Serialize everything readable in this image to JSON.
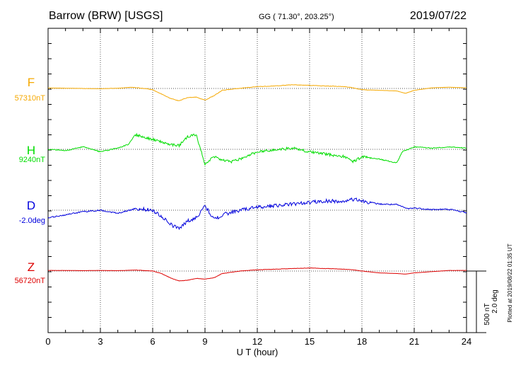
{
  "header": {
    "station": "Barrow (BRW)  [USGS]",
    "coords": "GG ( 71.30°, 203.25°)",
    "date": "2019/07/22"
  },
  "scale_bar": {
    "line1": "500 nT",
    "line2": "2.0 deg"
  },
  "plotted_note": "Plotted at 2019/08/22 01:35 UT",
  "chart_data": {
    "type": "line",
    "title": "Barrow (BRW)  [USGS]",
    "xlabel": "U T (hour)",
    "ylabel": "",
    "xlim": [
      0,
      24
    ],
    "x_ticks": [
      "0",
      "3",
      "6",
      "9",
      "12",
      "15",
      "18",
      "21",
      "24"
    ],
    "grid": true,
    "colors": {
      "F": "#f5a800",
      "H": "#00dd00",
      "D": "#0000dd",
      "Z": "#dd0000"
    },
    "series": [
      {
        "name": "F",
        "baseline_label": "57310nT",
        "color": "#f5a800",
        "unit": "nT",
        "x": [
          0,
          1,
          2,
          3,
          4,
          4.8,
          5.4,
          6,
          6.5,
          7,
          7.5,
          8,
          8.5,
          9,
          9.5,
          10,
          11,
          12,
          13,
          14,
          15,
          16,
          17,
          17.5,
          18,
          19,
          20,
          20.5,
          21,
          22,
          23,
          24
        ],
        "values": [
          4,
          2,
          0,
          -2,
          2,
          10,
          2,
          -10,
          -45,
          -80,
          -100,
          -75,
          -70,
          -95,
          -60,
          -15,
          2,
          15,
          20,
          30,
          25,
          20,
          15,
          5,
          -10,
          -15,
          -20,
          -40,
          -15,
          5,
          10,
          5
        ]
      },
      {
        "name": "H",
        "baseline_label": "9240nT",
        "color": "#00dd00",
        "unit": "nT",
        "x": [
          0,
          1,
          2,
          3,
          4,
          4.6,
          5,
          5.5,
          6,
          6.5,
          7,
          7.5,
          8,
          8.5,
          9,
          9.5,
          10,
          10.5,
          11,
          12,
          13,
          14,
          15,
          16,
          17,
          17.5,
          18,
          19,
          20,
          20.3,
          21,
          22,
          23,
          24
        ],
        "values": [
          0,
          -10,
          20,
          -20,
          10,
          40,
          120,
          100,
          80,
          60,
          40,
          30,
          100,
          120,
          -120,
          -60,
          -90,
          -100,
          -80,
          -20,
          -5,
          10,
          -20,
          -40,
          -60,
          -100,
          -60,
          -80,
          -110,
          -20,
          20,
          10,
          20,
          10
        ]
      },
      {
        "name": "D",
        "baseline_label": "-2.0deg",
        "color": "#0000dd",
        "unit": "deg",
        "x": [
          0,
          1,
          2,
          3,
          4,
          5,
          6,
          6.5,
          7,
          7.5,
          8,
          8.5,
          9,
          9.5,
          10,
          11,
          12,
          13,
          14,
          15,
          16,
          17,
          17.5,
          18,
          19,
          20,
          20.6,
          21,
          22,
          23,
          24
        ],
        "values": [
          -0.25,
          -0.15,
          -0.05,
          0,
          -0.1,
          0.05,
          0,
          -0.2,
          -0.45,
          -0.6,
          -0.35,
          -0.25,
          0.15,
          -0.3,
          -0.15,
          0,
          0.1,
          0.15,
          0.2,
          0.25,
          0.3,
          0.28,
          0.35,
          0.3,
          0.2,
          0.18,
          0.05,
          0.07,
          0.02,
          0.03,
          -0.08
        ]
      },
      {
        "name": "Z",
        "baseline_label": "56720nT",
        "color": "#dd0000",
        "unit": "nT",
        "x": [
          0,
          1,
          2,
          3,
          4,
          5,
          6,
          6.5,
          7,
          7.5,
          8,
          8.5,
          9,
          9.5,
          10,
          11,
          12,
          13,
          14,
          15,
          16,
          17,
          17.5,
          18,
          19,
          20,
          20.5,
          21,
          22,
          23,
          24
        ],
        "values": [
          5,
          5,
          3,
          5,
          3,
          8,
          0,
          -20,
          -55,
          -80,
          -75,
          -60,
          -65,
          -55,
          -20,
          0,
          10,
          15,
          20,
          25,
          20,
          15,
          10,
          0,
          -15,
          -20,
          -25,
          -15,
          -5,
          5,
          5
        ]
      }
    ]
  }
}
